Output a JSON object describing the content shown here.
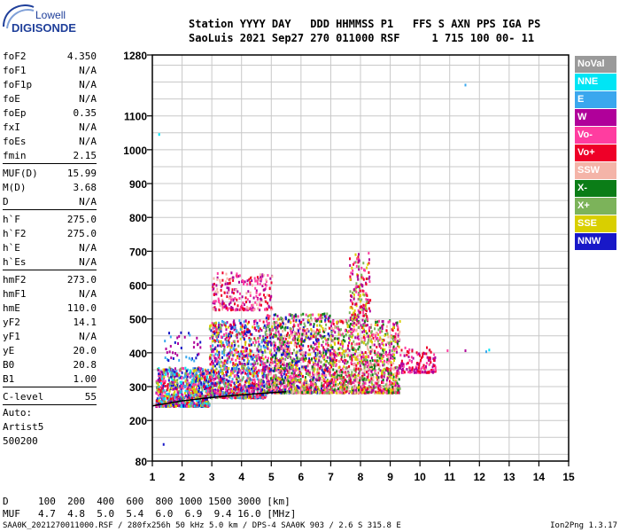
{
  "logo": {
    "line1": "Lowell",
    "line2": "DIGISONDE"
  },
  "header": {
    "line1": "Station YYYY DAY   DDD HHMMSS P1   FFS S AXN PPS IGA PS",
    "line2": "SaoLuis 2021 Sep27 270 011000 RSF     1 715 100 00- 11"
  },
  "params": [
    {
      "name": "foF2",
      "value": "4.350"
    },
    {
      "name": "foF1",
      "value": "N/A"
    },
    {
      "name": "foF1p",
      "value": "N/A"
    },
    {
      "name": "foE",
      "value": "N/A"
    },
    {
      "name": "foEp",
      "value": "0.35"
    },
    {
      "name": "fxI",
      "value": "N/A"
    },
    {
      "name": "foEs",
      "value": "N/A"
    },
    {
      "name": "fmin",
      "value": "2.15"
    },
    {
      "sep": true
    },
    {
      "name": "MUF(D)",
      "value": "15.99"
    },
    {
      "name": "M(D)",
      "value": "3.68"
    },
    {
      "name": "D",
      "value": "N/A"
    },
    {
      "sep": true
    },
    {
      "name": "h`F",
      "value": "275.0"
    },
    {
      "name": "h`F2",
      "value": "275.0"
    },
    {
      "name": "h`E",
      "value": "N/A"
    },
    {
      "name": "h`Es",
      "value": "N/A"
    },
    {
      "sep": true
    },
    {
      "name": "hmF2",
      "value": "273.0"
    },
    {
      "name": "hmF1",
      "value": "N/A"
    },
    {
      "name": "hmE",
      "value": "110.0"
    },
    {
      "name": "yF2",
      "value": "14.1"
    },
    {
      "name": "yF1",
      "value": "N/A"
    },
    {
      "name": "yE",
      "value": "20.0"
    },
    {
      "name": "B0",
      "value": "20.8"
    },
    {
      "name": "B1",
      "value": "1.00"
    },
    {
      "sep": true
    },
    {
      "name": "C-level",
      "value": "55"
    },
    {
      "sep": true
    }
  ],
  "autoscale": {
    "line1": "Auto:",
    "line2": "Artist5",
    "line3": "500200"
  },
  "legend": [
    {
      "label": "NoVal",
      "color": "#9a9a9a"
    },
    {
      "label": "NNE",
      "color": "#00e5f5"
    },
    {
      "label": "E",
      "color": "#3aa7ee"
    },
    {
      "label": "W",
      "color": "#b0009a"
    },
    {
      "label": "Vo-",
      "color": "#ff3da0"
    },
    {
      "label": "Vo+",
      "color": "#ee0028"
    },
    {
      "label": "SSW",
      "color": "#f4b4a8"
    },
    {
      "label": "X-",
      "color": "#0b7d17"
    },
    {
      "label": "X+",
      "color": "#7cb35a"
    },
    {
      "label": "SSE",
      "color": "#d9cf00"
    },
    {
      "label": "NNW",
      "color": "#1818c8"
    }
  ],
  "chart_data": {
    "type": "scatter",
    "xlim": [
      1,
      15
    ],
    "ylim": [
      80,
      1280
    ],
    "x_ticks": [
      "1",
      "2",
      "3",
      "4",
      "5",
      "6",
      "7",
      "8",
      "9",
      "10",
      "11",
      "12",
      "13",
      "14",
      "15"
    ],
    "y_ticks": [
      {
        "value": 80,
        "label": "80"
      },
      {
        "value": 200,
        "label": "200"
      },
      {
        "value": 300,
        "label": "300"
      },
      {
        "value": 400,
        "label": "400"
      },
      {
        "value": 500,
        "label": "500"
      },
      {
        "value": 600,
        "label": "600"
      },
      {
        "value": 700,
        "label": "700"
      },
      {
        "value": 800,
        "label": "800"
      },
      {
        "value": 900,
        "label": "900"
      },
      {
        "value": 1000,
        "label": "1000"
      },
      {
        "value": 1100,
        "label": "1100"
      },
      {
        "value": 1280,
        "label": "1280"
      }
    ],
    "grid": true,
    "clusters": [
      {
        "x": [
          1.1,
          2.9
        ],
        "y": [
          245,
          360
        ],
        "colors": [
          "NNW",
          "W",
          "Vo-",
          "Vo+",
          "E",
          "NNE",
          "X+",
          "SSE"
        ],
        "density": 900
      },
      {
        "x": [
          2.9,
          4.8
        ],
        "y": [
          270,
          500
        ],
        "colors": [
          "W",
          "Vo-",
          "Vo+",
          "SSE",
          "X+",
          "NNW",
          "E"
        ],
        "density": 1100
      },
      {
        "x": [
          4.8,
          7.0
        ],
        "y": [
          285,
          520
        ],
        "colors": [
          "W",
          "Vo-",
          "Vo+",
          "SSE",
          "X-",
          "X+",
          "NNW",
          "SSW"
        ],
        "density": 1300
      },
      {
        "x": [
          7.0,
          9.3
        ],
        "y": [
          285,
          500
        ],
        "colors": [
          "W",
          "Vo-",
          "Vo+",
          "X-",
          "X+",
          "SSE",
          "SSW"
        ],
        "density": 1100
      },
      {
        "x": [
          9.3,
          10.5
        ],
        "y": [
          345,
          420
        ],
        "colors": [
          "W",
          "Vo-",
          "Vo+"
        ],
        "density": 140
      },
      {
        "x": [
          3.0,
          5.0
        ],
        "y": [
          530,
          640
        ],
        "colors": [
          "W",
          "Vo-",
          "Vo+",
          "SSW"
        ],
        "density": 260
      },
      {
        "x": [
          7.6,
          8.3
        ],
        "y": [
          500,
          700
        ],
        "colors": [
          "W",
          "Vo-",
          "Vo+",
          "SSE",
          "X+"
        ],
        "density": 180
      },
      {
        "x": [
          1.3,
          2.6
        ],
        "y": [
          380,
          480
        ],
        "colors": [
          "NNW",
          "W",
          "E"
        ],
        "density": 40
      }
    ],
    "trace": {
      "name": "profile",
      "x": [
        1,
        2,
        3,
        4,
        5,
        5.5
      ],
      "y": [
        243,
        258,
        268,
        276,
        282,
        285
      ]
    },
    "isolated_points": [
      {
        "x": 11.5,
        "y": 1195,
        "color": "E"
      },
      {
        "x": 12.2,
        "y": 407,
        "color": "E"
      },
      {
        "x": 12.3,
        "y": 412,
        "color": "NNE"
      },
      {
        "x": 10.9,
        "y": 410,
        "color": "Vo-"
      },
      {
        "x": 11.5,
        "y": 410,
        "color": "W"
      },
      {
        "x": 1.35,
        "y": 133,
        "color": "NNW"
      },
      {
        "x": 1.2,
        "y": 1049,
        "color": "NNE"
      }
    ]
  },
  "bottom": {
    "d_label": "D",
    "d_values": "100  200  400  600  800 1000 1500 3000 [km]",
    "muf_label": "MUF",
    "muf_values": "4.7  4.8  5.0  5.4  6.0  6.9  9.4 16.0 [MHz]"
  },
  "footer": "SAA0K_2021270011000.RSF / 280fx256h 50 kHz 5.0 km / DPS-4 SAA0K 903 / 2.6 S 315.8 E",
  "version": "Ion2Png 1.3.17"
}
